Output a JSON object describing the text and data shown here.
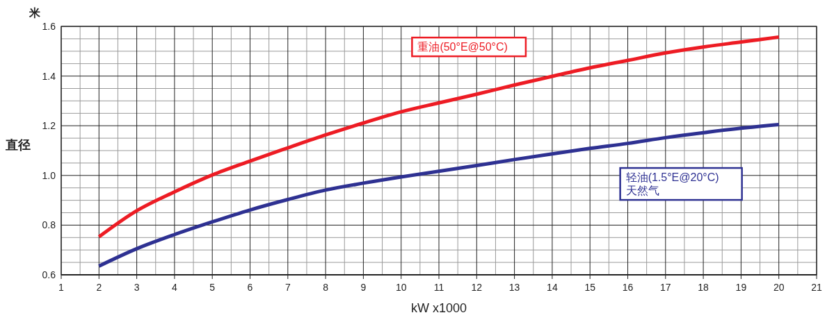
{
  "chart_data": {
    "type": "line",
    "xlabel": "kW x1000",
    "ylabel": "直径",
    "annotations": [
      "米"
    ],
    "x": [
      2,
      3,
      4,
      5,
      6,
      7,
      8,
      9,
      10,
      11,
      12,
      13,
      14,
      15,
      16,
      17,
      18,
      19,
      20
    ],
    "series": [
      {
        "name": "重油(50°E@50°C)",
        "color": "#ed1c24",
        "values": [
          0.753,
          0.858,
          0.934,
          1.002,
          1.058,
          1.111,
          1.163,
          1.211,
          1.256,
          1.292,
          1.327,
          1.364,
          1.399,
          1.433,
          1.463,
          1.493,
          1.517,
          1.537,
          1.557
        ]
      },
      {
        "name": "轻油(1.5°E@20°C)\n天然气",
        "color": "#2e3192",
        "values": [
          0.635,
          0.705,
          0.762,
          0.813,
          0.861,
          0.903,
          0.941,
          0.969,
          0.994,
          1.017,
          1.04,
          1.064,
          1.087,
          1.109,
          1.129,
          1.152,
          1.172,
          1.19,
          1.205
        ]
      }
    ],
    "xlim": [
      1,
      21
    ],
    "xticks": [
      1,
      2,
      3,
      4,
      5,
      6,
      7,
      8,
      9,
      10,
      11,
      12,
      13,
      14,
      15,
      16,
      17,
      18,
      19,
      20,
      21
    ],
    "ylim": [
      0.6,
      1.6
    ],
    "yticks": [
      {
        "value": 0.6,
        "label": "0.6"
      },
      {
        "value": 0.8,
        "label": "0.8"
      },
      {
        "value": 1.0,
        "label": "1.0"
      },
      {
        "value": 1.2,
        "label": "1.2"
      },
      {
        "value": 1.4,
        "label": "1.4"
      },
      {
        "value": 1.6,
        "label": "1.6"
      }
    ],
    "grid": true,
    "legend": false,
    "marker": "none",
    "line_style": "solid"
  }
}
